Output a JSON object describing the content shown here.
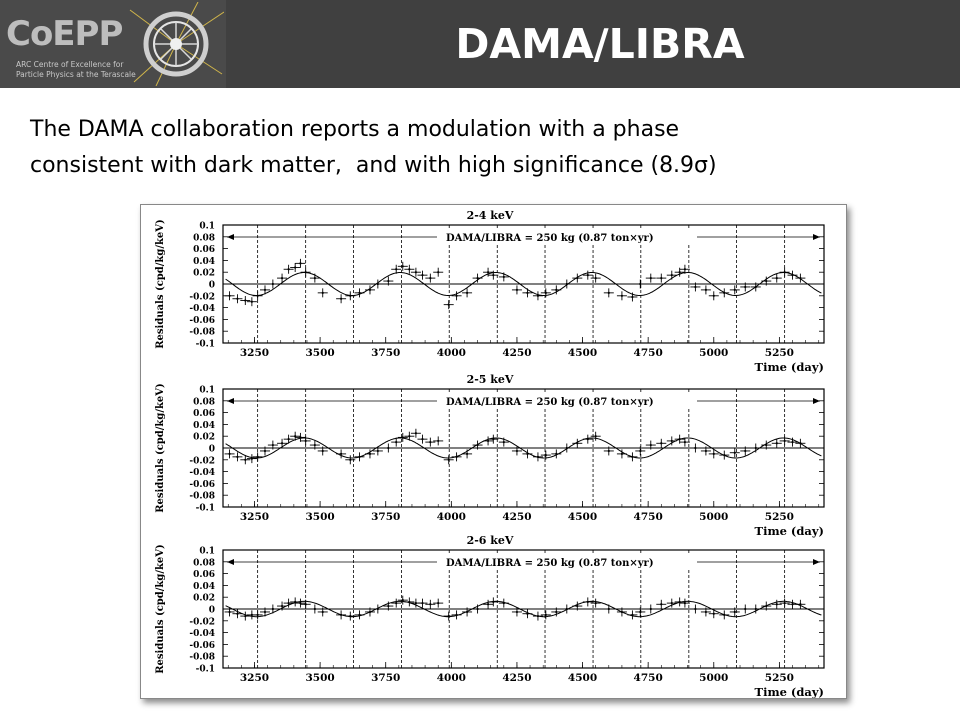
{
  "header": {
    "title": "DAMA/LIBRA",
    "logo_text": "CoEPP",
    "logo_subtitle_line1": "ARC Centre of Excellence for",
    "logo_subtitle_line2": "Particle Physics at the Terascale",
    "background_color": "#404040"
  },
  "statement": {
    "line1": "The DAMA collaboration reports a modulation with a phase",
    "line2": "consistent with dark matter,  and with high significance (8.9σ)"
  },
  "chart_data": [
    {
      "type": "scatter",
      "title": "2-4 keV",
      "xlabel": "Time (day)",
      "ylabel": "Residuals (cpd/kg/keV)",
      "annotation": "DAMA/LIBRA = 250 kg   (0.87 ton×yr)",
      "xlim": [
        3130,
        5420
      ],
      "ylim": [
        -0.1,
        0.1
      ],
      "x_ticks": [
        "3250",
        "3500",
        "3750",
        "4000",
        "4250",
        "4500",
        "4750",
        "5000",
        "5250"
      ],
      "y_ticks": [
        "0.1",
        "0.08",
        "0.06",
        "0.04",
        "0.02",
        "0",
        "-0.02",
        "-0.04",
        "-0.06",
        "-0.08",
        "-0.1"
      ],
      "modulation_amplitude": 0.0195,
      "x": [
        3155,
        3185,
        3215,
        3240,
        3262,
        3290,
        3320,
        3355,
        3380,
        3405,
        3425,
        3445,
        3480,
        3510,
        3580,
        3615,
        3650,
        3690,
        3720,
        3760,
        3790,
        3815,
        3840,
        3865,
        3890,
        3920,
        3950,
        3990,
        4020,
        4060,
        4100,
        4140,
        4160,
        4200,
        4250,
        4290,
        4330,
        4360,
        4400,
        4440,
        4480,
        4520,
        4550,
        4600,
        4650,
        4690,
        4720,
        4760,
        4800,
        4840,
        4870,
        4890,
        4930,
        4970,
        5000,
        5040,
        5080,
        5120,
        5160,
        5200,
        5240,
        5270,
        5300,
        5330
      ],
      "y": [
        -0.02,
        -0.025,
        -0.028,
        -0.03,
        -0.02,
        -0.01,
        0.0,
        0.01,
        0.025,
        0.028,
        0.035,
        0.02,
        0.01,
        -0.015,
        -0.025,
        -0.02,
        -0.015,
        -0.01,
        0.0,
        0.005,
        0.025,
        0.03,
        0.025,
        0.02,
        0.015,
        0.01,
        0.02,
        -0.035,
        -0.02,
        -0.015,
        0.01,
        0.02,
        0.015,
        0.012,
        -0.01,
        -0.015,
        -0.02,
        -0.015,
        -0.01,
        0.0,
        0.01,
        0.015,
        0.01,
        -0.015,
        -0.02,
        -0.022,
        0.0,
        0.01,
        0.01,
        0.015,
        0.02,
        0.025,
        -0.005,
        -0.01,
        -0.02,
        -0.015,
        -0.01,
        -0.005,
        -0.005,
        0.005,
        0.01,
        0.02,
        0.015,
        0.01
      ]
    },
    {
      "type": "scatter",
      "title": "2-5 keV",
      "xlabel": "Time (day)",
      "ylabel": "Residuals (cpd/kg/keV)",
      "annotation": "DAMA/LIBRA = 250 kg   (0.87 ton×yr)",
      "xlim": [
        3130,
        5420
      ],
      "ylim": [
        -0.1,
        0.1
      ],
      "x_ticks": [
        "3250",
        "3500",
        "3750",
        "4000",
        "4250",
        "4500",
        "4750",
        "5000",
        "5250"
      ],
      "y_ticks": [
        "0.1",
        "0.08",
        "0.06",
        "0.04",
        "0.02",
        "0",
        "-0.02",
        "-0.04",
        "-0.06",
        "-0.08",
        "-0.1"
      ],
      "modulation_amplitude": 0.017,
      "x": [
        3155,
        3185,
        3215,
        3240,
        3262,
        3290,
        3320,
        3355,
        3380,
        3405,
        3425,
        3445,
        3480,
        3510,
        3580,
        3615,
        3650,
        3690,
        3720,
        3760,
        3790,
        3815,
        3840,
        3865,
        3890,
        3920,
        3950,
        3990,
        4020,
        4060,
        4100,
        4140,
        4160,
        4200,
        4250,
        4290,
        4330,
        4360,
        4400,
        4440,
        4480,
        4520,
        4550,
        4600,
        4650,
        4690,
        4720,
        4760,
        4800,
        4840,
        4870,
        4890,
        4930,
        4970,
        5000,
        5040,
        5080,
        5120,
        5160,
        5200,
        5240,
        5270,
        5300,
        5330
      ],
      "y": [
        -0.01,
        -0.015,
        -0.02,
        -0.018,
        -0.015,
        -0.005,
        0.005,
        0.008,
        0.015,
        0.02,
        0.018,
        0.012,
        0.005,
        -0.005,
        -0.01,
        -0.02,
        -0.015,
        -0.01,
        -0.005,
        0.0,
        0.01,
        0.018,
        0.02,
        0.025,
        0.015,
        0.01,
        0.012,
        -0.02,
        -0.015,
        -0.01,
        0.005,
        0.012,
        0.015,
        0.01,
        -0.005,
        -0.01,
        -0.015,
        -0.012,
        -0.01,
        0.0,
        0.008,
        0.015,
        0.02,
        -0.005,
        -0.01,
        -0.015,
        -0.005,
        0.005,
        0.008,
        0.012,
        0.015,
        0.01,
        0.0,
        -0.005,
        -0.01,
        -0.012,
        -0.008,
        -0.005,
        0.0,
        0.005,
        0.008,
        0.012,
        0.01,
        0.008
      ]
    },
    {
      "type": "scatter",
      "title": "2-6 keV",
      "xlabel": "Time (day)",
      "ylabel": "Residuals (cpd/kg/keV)",
      "annotation": "DAMA/LIBRA = 250 kg   (0.87 ton×yr)",
      "xlim": [
        3130,
        5420
      ],
      "ylim": [
        -0.1,
        0.1
      ],
      "x_ticks": [
        "3250",
        "3500",
        "3750",
        "4000",
        "4250",
        "4500",
        "4750",
        "5000",
        "5250"
      ],
      "y_ticks": [
        "0.1",
        "0.08",
        "0.06",
        "0.04",
        "0.02",
        "0",
        "-0.02",
        "-0.04",
        "-0.06",
        "-0.08",
        "-0.1"
      ],
      "modulation_amplitude": 0.013,
      "x": [
        3155,
        3185,
        3215,
        3240,
        3262,
        3290,
        3320,
        3355,
        3380,
        3405,
        3425,
        3445,
        3480,
        3510,
        3580,
        3615,
        3650,
        3690,
        3720,
        3760,
        3790,
        3815,
        3840,
        3865,
        3890,
        3920,
        3950,
        3990,
        4020,
        4060,
        4100,
        4140,
        4160,
        4200,
        4250,
        4290,
        4330,
        4360,
        4400,
        4440,
        4480,
        4520,
        4550,
        4600,
        4650,
        4690,
        4720,
        4760,
        4800,
        4840,
        4870,
        4890,
        4930,
        4970,
        5000,
        5040,
        5080,
        5120,
        5160,
        5200,
        5240,
        5270,
        5300,
        5330
      ],
      "y": [
        -0.005,
        -0.008,
        -0.012,
        -0.01,
        -0.01,
        -0.005,
        0.0,
        0.005,
        0.01,
        0.012,
        0.01,
        0.008,
        0.0,
        -0.005,
        -0.01,
        -0.012,
        -0.01,
        -0.005,
        0.0,
        0.005,
        0.01,
        0.015,
        0.012,
        0.01,
        0.01,
        0.008,
        0.01,
        -0.012,
        -0.01,
        -0.005,
        0.0,
        0.008,
        0.012,
        0.01,
        -0.005,
        -0.008,
        -0.012,
        -0.01,
        -0.005,
        0.0,
        0.005,
        0.012,
        0.01,
        0.0,
        -0.005,
        -0.01,
        -0.005,
        0.0,
        0.008,
        0.01,
        0.012,
        0.01,
        0.0,
        -0.005,
        -0.008,
        -0.01,
        -0.005,
        0.0,
        0.0,
        0.005,
        0.008,
        0.01,
        0.008,
        0.008
      ]
    }
  ]
}
